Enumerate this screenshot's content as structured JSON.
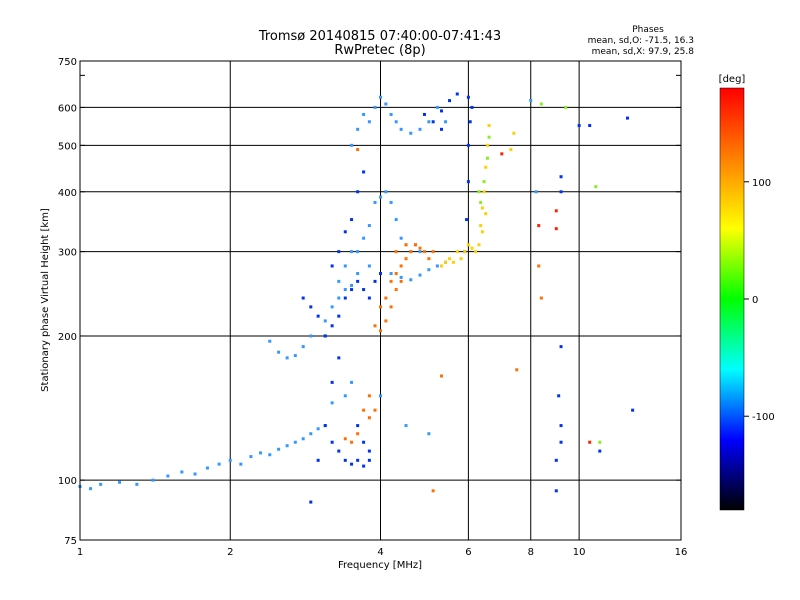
{
  "chart_data": {
    "type": "scatter",
    "title": "Tromsø 20140815 07:40:00-07:41:43",
    "subtitle": "RwPretec (8p)",
    "xlabel": "Frequency [MHz]",
    "ylabel": "Stationary phase Virtual Height [km]",
    "x_scale": "log",
    "y_scale": "log",
    "xlim": [
      1,
      16
    ],
    "ylim": [
      75,
      750
    ],
    "xticks": [
      1,
      2,
      4,
      6,
      8,
      10,
      16
    ],
    "yticks": [
      75,
      100,
      200,
      300,
      400,
      500,
      600,
      750
    ],
    "grid": true,
    "stats": {
      "header": "Phases",
      "line_o": "mean, sd,O: -71.5, 16.3",
      "line_x": "mean, sd,X:  97.9, 25.8"
    },
    "colorbar": {
      "label": "[deg]",
      "range": [
        -180,
        180
      ],
      "ticks": [
        100,
        0,
        -100
      ],
      "colors": [
        "#ff0000",
        "#ff8000",
        "#ffff00",
        "#00ff00",
        "#00ffff",
        "#0000ff",
        "#000000"
      ]
    },
    "series": [
      {
        "color": "#3399ff",
        "points": [
          [
            1.0,
            97
          ],
          [
            1.05,
            96
          ],
          [
            1.1,
            98
          ],
          [
            1.2,
            99
          ],
          [
            1.3,
            98
          ],
          [
            1.4,
            100
          ],
          [
            1.5,
            102
          ],
          [
            1.6,
            104
          ],
          [
            1.7,
            103
          ],
          [
            1.8,
            106
          ],
          [
            1.9,
            108
          ],
          [
            2.0,
            110
          ],
          [
            2.1,
            108
          ],
          [
            2.2,
            112
          ],
          [
            2.3,
            114
          ],
          [
            2.4,
            113
          ],
          [
            2.5,
            116
          ],
          [
            2.6,
            118
          ],
          [
            2.7,
            120
          ],
          [
            2.8,
            122
          ],
          [
            2.9,
            125
          ],
          [
            3.0,
            128
          ],
          [
            3.1,
            130
          ],
          [
            2.4,
            195
          ],
          [
            2.5,
            185
          ],
          [
            2.6,
            180
          ],
          [
            2.7,
            182
          ],
          [
            2.8,
            190
          ],
          [
            2.9,
            200
          ],
          [
            3.1,
            215
          ],
          [
            3.2,
            230
          ],
          [
            3.3,
            260
          ],
          [
            3.4,
            280
          ],
          [
            3.5,
            300
          ],
          [
            3.5,
            500
          ],
          [
            3.6,
            540
          ],
          [
            3.7,
            580
          ],
          [
            3.8,
            560
          ],
          [
            3.9,
            600
          ],
          [
            4.0,
            630
          ],
          [
            4.1,
            610
          ],
          [
            4.2,
            580
          ],
          [
            4.3,
            560
          ],
          [
            4.4,
            540
          ],
          [
            4.6,
            530
          ],
          [
            4.8,
            540
          ],
          [
            5.0,
            560
          ],
          [
            5.2,
            600
          ],
          [
            5.4,
            560
          ],
          [
            3.6,
            300
          ],
          [
            3.7,
            320
          ],
          [
            3.8,
            340
          ],
          [
            3.9,
            380
          ],
          [
            4.0,
            390
          ],
          [
            4.1,
            400
          ],
          [
            4.2,
            380
          ],
          [
            4.3,
            350
          ],
          [
            4.4,
            320
          ],
          [
            4.5,
            310
          ],
          [
            4.6,
            300
          ],
          [
            4.7,
            310
          ],
          [
            4.8,
            300
          ],
          [
            4.2,
            270
          ],
          [
            4.4,
            265
          ],
          [
            4.6,
            262
          ],
          [
            4.8,
            268
          ],
          [
            5.0,
            275
          ],
          [
            5.2,
            280
          ],
          [
            5.4,
            285
          ],
          [
            3.3,
            240
          ],
          [
            3.4,
            250
          ],
          [
            3.5,
            255
          ],
          [
            3.6,
            270
          ],
          [
            3.8,
            280
          ],
          [
            3.2,
            145
          ],
          [
            3.4,
            150
          ],
          [
            3.5,
            160
          ],
          [
            4.0,
            150
          ],
          [
            4.5,
            130
          ],
          [
            5.0,
            125
          ],
          [
            8.2,
            400
          ],
          [
            8.0,
            620
          ]
        ]
      },
      {
        "color": "#0033ee",
        "points": [
          [
            2.9,
            90
          ],
          [
            3.0,
            110
          ],
          [
            3.1,
            130
          ],
          [
            3.2,
            160
          ],
          [
            3.3,
            180
          ],
          [
            3.2,
            120
          ],
          [
            3.3,
            115
          ],
          [
            3.4,
            110
          ],
          [
            3.5,
            108
          ],
          [
            3.6,
            110
          ],
          [
            3.7,
            107
          ],
          [
            3.8,
            110
          ],
          [
            3.1,
            200
          ],
          [
            3.2,
            210
          ],
          [
            3.3,
            220
          ],
          [
            3.4,
            240
          ],
          [
            3.5,
            250
          ],
          [
            3.6,
            260
          ],
          [
            3.7,
            250
          ],
          [
            3.8,
            240
          ],
          [
            3.9,
            260
          ],
          [
            4.0,
            270
          ],
          [
            3.2,
            280
          ],
          [
            3.3,
            300
          ],
          [
            3.4,
            330
          ],
          [
            3.5,
            350
          ],
          [
            3.6,
            400
          ],
          [
            3.7,
            440
          ],
          [
            2.8,
            240
          ],
          [
            2.9,
            230
          ],
          [
            3.0,
            220
          ],
          [
            3.1,
            200
          ],
          [
            5.9,
            300
          ],
          [
            5.95,
            350
          ],
          [
            6.0,
            420
          ],
          [
            6.0,
            500
          ],
          [
            6.05,
            560
          ],
          [
            6.1,
            600
          ],
          [
            5.3,
            590
          ],
          [
            5.5,
            620
          ],
          [
            5.7,
            640
          ],
          [
            6.0,
            630
          ],
          [
            4.9,
            580
          ],
          [
            5.1,
            560
          ],
          [
            5.3,
            540
          ],
          [
            3.6,
            130
          ],
          [
            3.7,
            120
          ],
          [
            3.8,
            115
          ],
          [
            9.2,
            430
          ],
          [
            9.2,
            400
          ],
          [
            9.2,
            190
          ],
          [
            9.1,
            150
          ],
          [
            9.2,
            120
          ],
          [
            9.0,
            110
          ],
          [
            9.0,
            95
          ],
          [
            10.0,
            550
          ],
          [
            10.5,
            550
          ],
          [
            12.5,
            570
          ],
          [
            12.8,
            140
          ],
          [
            11.0,
            115
          ],
          [
            9.2,
            130
          ]
        ]
      },
      {
        "color": "#ff7000",
        "points": [
          [
            3.7,
            140
          ],
          [
            3.8,
            135
          ],
          [
            3.9,
            140
          ],
          [
            3.8,
            150
          ],
          [
            3.6,
            125
          ],
          [
            3.5,
            120
          ],
          [
            3.4,
            122
          ],
          [
            3.9,
            210
          ],
          [
            4.0,
            205
          ],
          [
            4.1,
            215
          ],
          [
            4.2,
            230
          ],
          [
            4.3,
            250
          ],
          [
            4.4,
            260
          ],
          [
            4.0,
            230
          ],
          [
            4.1,
            240
          ],
          [
            4.2,
            260
          ],
          [
            4.3,
            270
          ],
          [
            4.4,
            280
          ],
          [
            4.5,
            290
          ],
          [
            4.6,
            300
          ],
          [
            4.7,
            310
          ],
          [
            4.8,
            305
          ],
          [
            4.9,
            300
          ],
          [
            5.0,
            290
          ],
          [
            5.1,
            300
          ],
          [
            4.3,
            300
          ],
          [
            4.5,
            310
          ],
          [
            3.6,
            490
          ],
          [
            5.1,
            95
          ],
          [
            5.3,
            165
          ],
          [
            7.5,
            170
          ],
          [
            8.3,
            280
          ],
          [
            8.4,
            240
          ]
        ]
      },
      {
        "color": "#ffd000",
        "points": [
          [
            5.3,
            280
          ],
          [
            5.4,
            285
          ],
          [
            5.5,
            290
          ],
          [
            5.6,
            285
          ],
          [
            5.7,
            300
          ],
          [
            5.8,
            290
          ],
          [
            5.9,
            300
          ],
          [
            6.0,
            310
          ],
          [
            6.1,
            305
          ],
          [
            6.2,
            300
          ],
          [
            6.3,
            310
          ],
          [
            6.35,
            340
          ],
          [
            6.4,
            370
          ],
          [
            6.45,
            400
          ],
          [
            6.5,
            450
          ],
          [
            6.55,
            500
          ],
          [
            6.6,
            550
          ],
          [
            6.5,
            360
          ],
          [
            6.4,
            330
          ],
          [
            7.3,
            490
          ],
          [
            7.4,
            530
          ]
        ]
      },
      {
        "color": "#88ee22",
        "points": [
          [
            6.3,
            400
          ],
          [
            6.35,
            380
          ],
          [
            6.45,
            420
          ],
          [
            6.55,
            470
          ],
          [
            6.6,
            520
          ],
          [
            8.4,
            610
          ],
          [
            9.4,
            600
          ],
          [
            10.8,
            410
          ],
          [
            11.0,
            120
          ]
        ]
      },
      {
        "color": "#ff2200",
        "points": [
          [
            7.0,
            480
          ],
          [
            8.3,
            340
          ],
          [
            9.0,
            365
          ],
          [
            9.0,
            335
          ],
          [
            10.5,
            120
          ]
        ]
      }
    ]
  }
}
